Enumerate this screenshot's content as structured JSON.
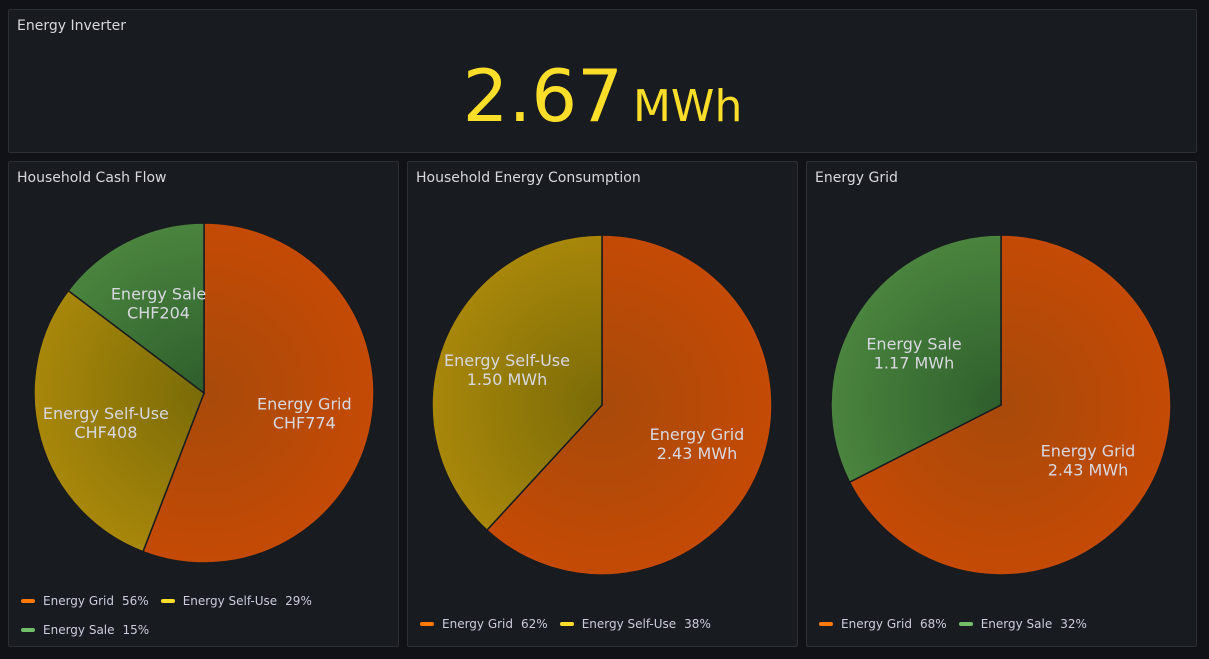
{
  "colors": {
    "Energy Grid": "#ff780a",
    "Energy Self-Use": "#fade2a",
    "Energy Sale": "#73bf69"
  },
  "stat": {
    "title": "Energy Inverter",
    "value": "2.67",
    "unit": "MWh"
  },
  "chart_data": [
    {
      "type": "pie",
      "title": "Household Cash Flow",
      "slices": [
        {
          "name": "Energy Grid",
          "value": 774,
          "label_value": "CHF774",
          "percent": "56%"
        },
        {
          "name": "Energy Self-Use",
          "value": 408,
          "label_value": "CHF408",
          "percent": "29%"
        },
        {
          "name": "Energy Sale",
          "value": 204,
          "label_value": "CHF204",
          "percent": "15%"
        }
      ],
      "legend_placement": "bottom"
    },
    {
      "type": "pie",
      "title": "Household Energy Consumption",
      "slices": [
        {
          "name": "Energy Grid",
          "value": 2.43,
          "label_value": "2.43 MWh",
          "percent": "62%"
        },
        {
          "name": "Energy Self-Use",
          "value": 1.5,
          "label_value": "1.50 MWh",
          "percent": "38%"
        }
      ],
      "legend_placement": "bottom"
    },
    {
      "type": "pie",
      "title": "Energy Grid",
      "slices": [
        {
          "name": "Energy Grid",
          "value": 2.43,
          "label_value": "2.43 MWh",
          "percent": "68%"
        },
        {
          "name": "Energy Sale",
          "value": 1.17,
          "label_value": "1.17 MWh",
          "percent": "32%"
        }
      ],
      "legend_placement": "bottom"
    }
  ]
}
